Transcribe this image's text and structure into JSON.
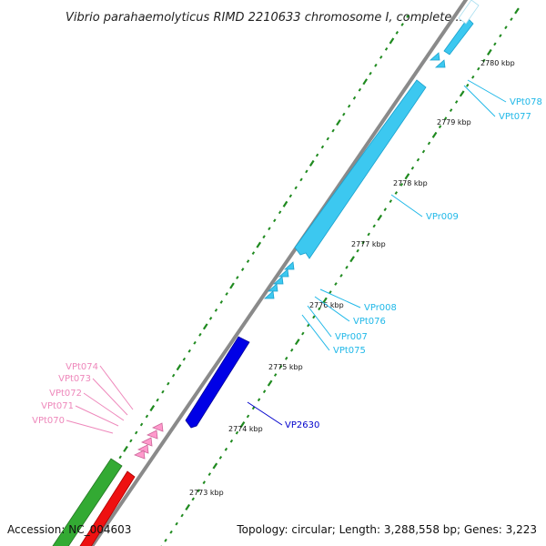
{
  "title": "Vibrio parahaemolyticus RIMD 2210633 chromosome I, complete ...",
  "footer": {
    "accession": "Accession: NC_004603",
    "summary": "Topology: circular; Length: 3,288,558 bp; Genes: 3,223"
  },
  "colors": {
    "backbone": "#8a8a8a",
    "tick": "#1f8a1f",
    "rna": "#3cc8f0",
    "trna_plus": "#ff99cc",
    "cds_plus": "#0000e6",
    "gene_green": "#33aa33",
    "gene_red": "#ee1111",
    "label_cyan": "#1fb8e8",
    "label_pink": "#ee88bb",
    "label_blue": "#0000cc"
  },
  "tick_labels": [
    "2773 kbp",
    "2774 kbp",
    "2775 kbp",
    "2776 kbp",
    "2777 kbp",
    "2778 kbp",
    "2779 kbp",
    "2780 kbp"
  ],
  "feature_labels": [
    {
      "text": "VPt078",
      "color": "cyan"
    },
    {
      "text": "VPt077",
      "color": "cyan"
    },
    {
      "text": "VPr009",
      "color": "cyan"
    },
    {
      "text": "VPr008",
      "color": "cyan"
    },
    {
      "text": "VPt076",
      "color": "cyan"
    },
    {
      "text": "VPr007",
      "color": "cyan"
    },
    {
      "text": "VPt075",
      "color": "cyan"
    },
    {
      "text": "VP2630",
      "color": "blue"
    },
    {
      "text": "VPt074",
      "color": "pink"
    },
    {
      "text": "VPt073",
      "color": "pink"
    },
    {
      "text": "VPt072",
      "color": "pink"
    },
    {
      "text": "VPt071",
      "color": "pink"
    },
    {
      "text": "VPt070",
      "color": "pink"
    }
  ]
}
